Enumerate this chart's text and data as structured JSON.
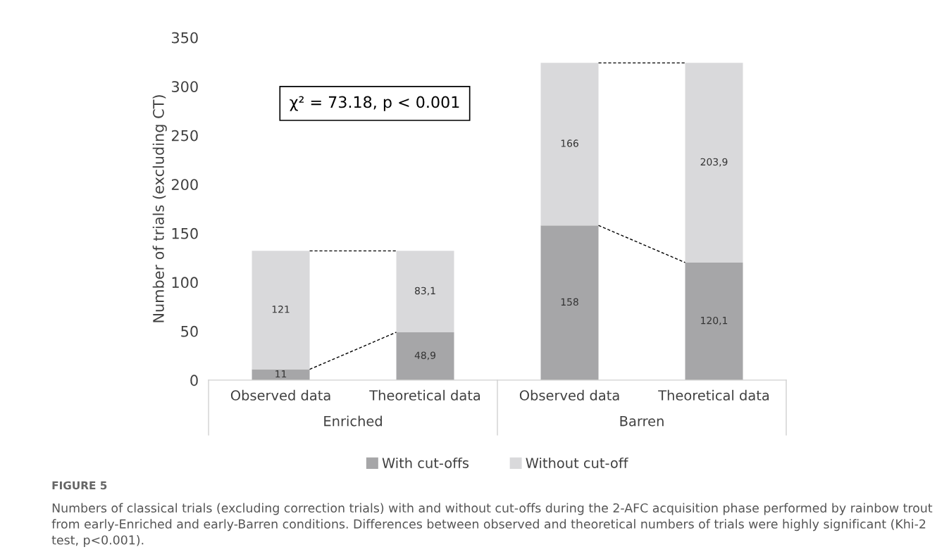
{
  "chart_data": {
    "type": "bar",
    "stacked": true,
    "title": "FIGURE 5",
    "subtitle": "Numbers of classical trials (excluding correction trials) with and without cut-offs during the 2-AFC acquisition phase performed by rainbow trout from early-Enriched and early-Barren conditions. Differences between observed and theoretical numbers of trials were highly significant (Khi-2 test, p<0.001).",
    "ylabel": "Number of trials (excluding CT)",
    "categories": [
      "Observed data",
      "Theoretical data",
      "Observed data",
      "Theoretical data"
    ],
    "series": [
      {
        "name": "With cut-offs",
        "color": "#a6a6a8",
        "values": [
          11,
          48.9,
          158,
          120.1
        ],
        "value_labels": [
          "11",
          "48,9",
          "158",
          "120,1"
        ]
      },
      {
        "name": "Without cut-off",
        "color": "#d9d9db",
        "values": [
          121,
          83.1,
          166,
          203.9
        ],
        "value_labels": [
          "121",
          "83,1",
          "166",
          "203,9"
        ]
      }
    ],
    "annotations": [
      "Enriched",
      "Barren",
      "χ² = 73.18, p < 0.001"
    ],
    "ylim": [
      0,
      350
    ],
    "yticks": [
      0,
      50,
      100,
      150,
      200,
      250,
      300,
      350
    ],
    "grid": false,
    "legend": "bottom"
  }
}
